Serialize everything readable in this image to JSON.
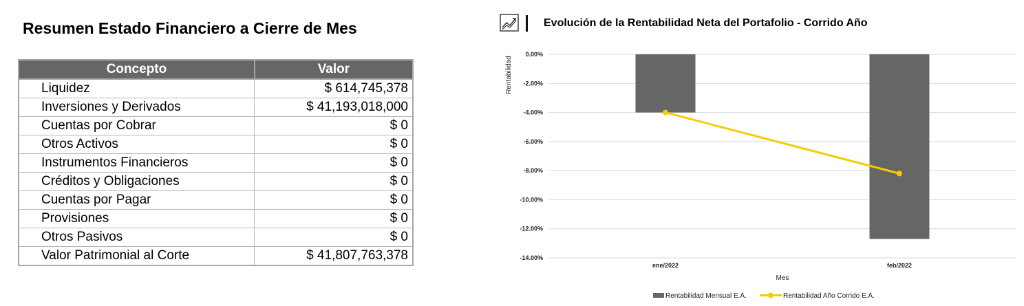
{
  "left": {
    "title": "Resumen Estado Financiero a Cierre de Mes",
    "table": {
      "headers": [
        "Concepto",
        "Valor"
      ],
      "rows": [
        {
          "concept": "Liquidez",
          "value": "$ 614,745,378"
        },
        {
          "concept": "Inversiones y Derivados",
          "value": "$ 41,193,018,000"
        },
        {
          "concept": "Cuentas por Cobrar",
          "value": "$ 0"
        },
        {
          "concept": "Otros Activos",
          "value": "$ 0"
        },
        {
          "concept": "Instrumentos Financieros",
          "value": "$ 0"
        },
        {
          "concept": "Créditos y Obligaciones",
          "value": "$ 0"
        },
        {
          "concept": "Cuentas por Pagar",
          "value": "$ 0"
        },
        {
          "concept": "Provisiones",
          "value": "$ 0"
        },
        {
          "concept": "Otros Pasivos",
          "value": "$ 0"
        },
        {
          "concept": "Valor Patrimonial al Corte",
          "value": "$ 41,807,763,378"
        }
      ]
    },
    "colors": {
      "header_bg": "#666666",
      "header_text": "#ffffff",
      "border": "#a6a6a6"
    }
  },
  "chart_data": {
    "type": "bar",
    "title": "Evolución de la Rentabilidad Neta del Portafolio - Corrido Año",
    "title_icon": "trend-chart-icon",
    "xlabel": "Mes",
    "ylabel": "Rentabilidad",
    "categories": [
      "ene/2022",
      "feb/2022"
    ],
    "ylim": [
      -14,
      0
    ],
    "yticks": [
      {
        "value": 0,
        "label": "0.00%"
      },
      {
        "value": -2,
        "label": "-2.00%"
      },
      {
        "value": -4,
        "label": "-4.00%"
      },
      {
        "value": -6,
        "label": "-6.00%"
      },
      {
        "value": -8,
        "label": "-8.00%"
      },
      {
        "value": -10,
        "label": "-10.00%"
      },
      {
        "value": -12,
        "label": "-12.00%"
      },
      {
        "value": -14,
        "label": "-14.00%"
      }
    ],
    "grid": true,
    "legend_position": "bottom",
    "series": [
      {
        "name": "Rentabilidad Mensual E.A.",
        "kind": "bar",
        "color": "#666666",
        "values": [
          -4.0,
          -12.7
        ]
      },
      {
        "name": "Rentabilidad Año Corrido E.A.",
        "kind": "line",
        "color": "#f5cc00",
        "values": [
          -4.0,
          -8.2
        ]
      }
    ]
  }
}
